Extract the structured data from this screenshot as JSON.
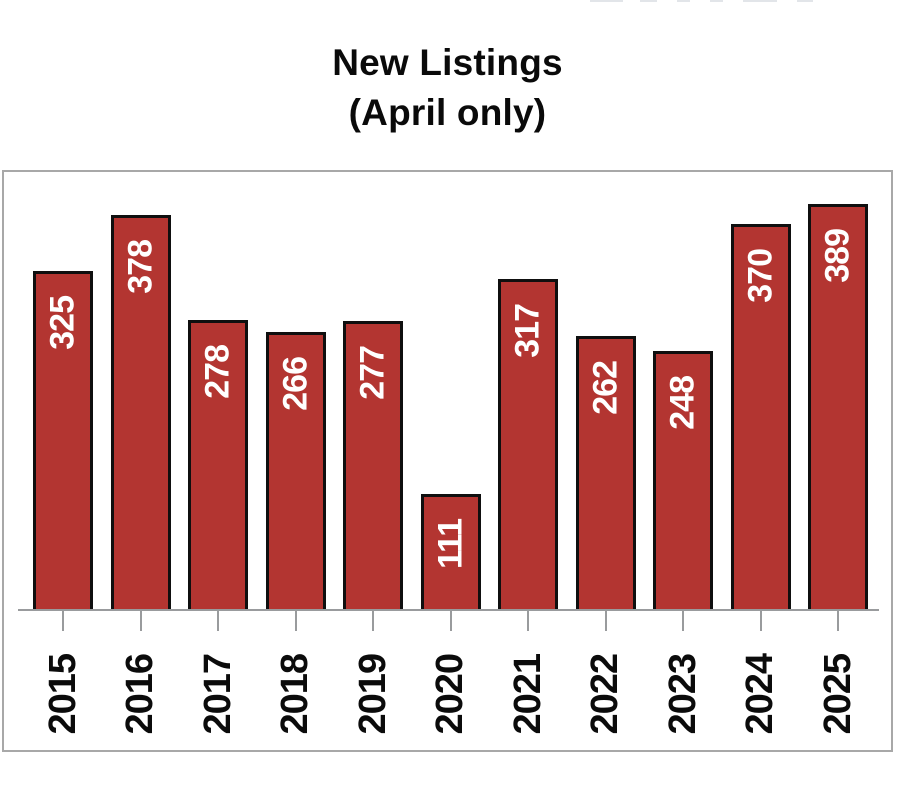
{
  "title": {
    "line1": "New Listings",
    "line2": "(April only)"
  },
  "chart_data": {
    "type": "bar",
    "title": "New Listings (April only)",
    "categories": [
      "2015",
      "2016",
      "2017",
      "2018",
      "2019",
      "2020",
      "2021",
      "2022",
      "2023",
      "2024",
      "2025"
    ],
    "values": [
      325,
      378,
      278,
      266,
      277,
      111,
      317,
      262,
      248,
      370,
      389
    ],
    "xlabel": "",
    "ylabel": "",
    "ylim": [
      0,
      421
    ],
    "grid": false,
    "legend_position": "none",
    "y_axis_visible": false,
    "value_label_position": "inside-top",
    "label_rotation_degrees": 90,
    "bar_color": "#b33531",
    "bar_border_color": "#0f0f0f",
    "value_label_color": "#ffffff",
    "axis_color": "#999b9d",
    "tick_label_color": "#0b0b0b",
    "frame_border_color": "#a8a8a8",
    "title_color": "#0a0a0a"
  }
}
